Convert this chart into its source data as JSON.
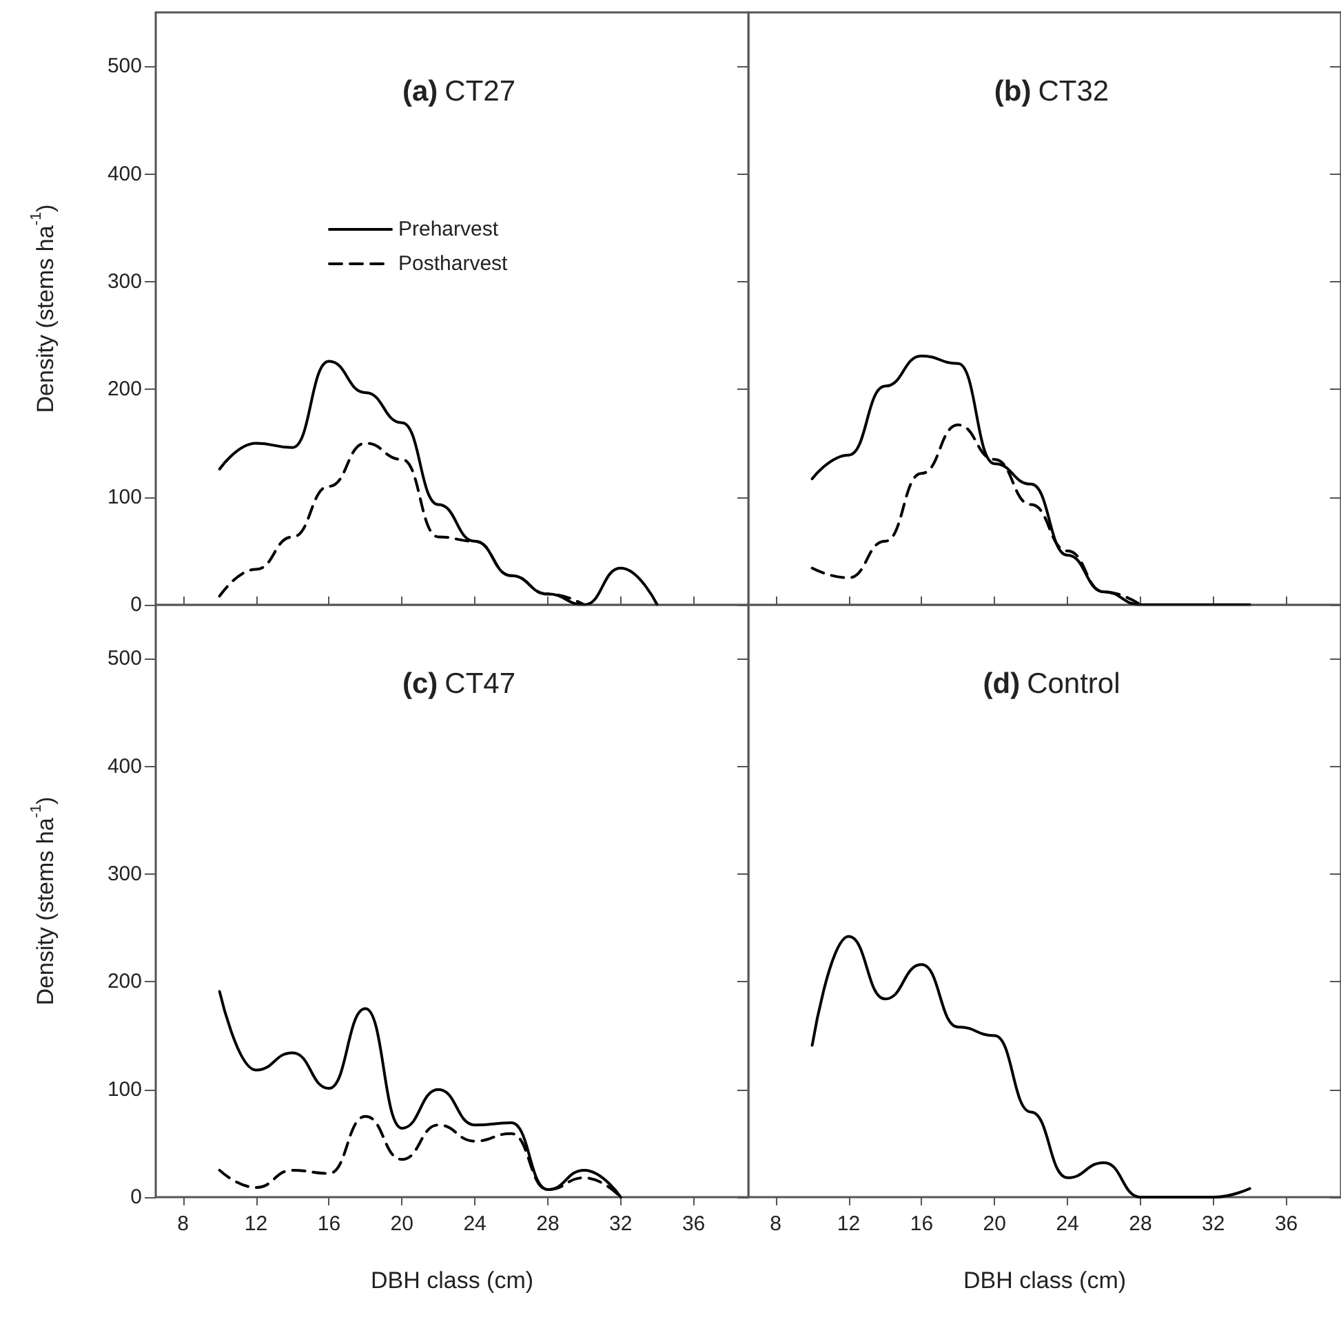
{
  "chart_data": [
    {
      "type": "line",
      "title": "(a) CT27",
      "ylabel": "Density (stems ha$^{-1}$)",
      "x": [
        10,
        12,
        14,
        16,
        18,
        20,
        22,
        24,
        26,
        28,
        30,
        32,
        34
      ],
      "xlim": [
        6.5,
        39
      ],
      "xticks": [
        8,
        12,
        16,
        20,
        24,
        28,
        32,
        36
      ],
      "ylim": [
        0,
        550
      ],
      "yticks": [
        0,
        100,
        200,
        300,
        400,
        500
      ],
      "tick_labels": "y",
      "legend": "top left",
      "grid": false,
      "marker": "none",
      "series": [
        {
          "name": "Preharvest",
          "color": "#000000",
          "line_style": "solid",
          "values": [
            126,
            150,
            146,
            226,
            197,
            169,
            93,
            59,
            27,
            10,
            0,
            34,
            0
          ]
        },
        {
          "name": "Postharvest",
          "color": "#000000",
          "line_style": "dashed",
          "values": [
            8,
            33,
            63,
            110,
            150,
            135,
            63,
            59,
            27,
            10,
            0,
            null,
            null
          ]
        }
      ]
    },
    {
      "type": "line",
      "title": "(b) CT32",
      "x": [
        10,
        12,
        14,
        16,
        18,
        20,
        22,
        24,
        26,
        28,
        30,
        32,
        34
      ],
      "xlim": [
        6.5,
        39
      ],
      "xticks": [
        8,
        12,
        16,
        20,
        24,
        28,
        32,
        36
      ],
      "ylim": [
        0,
        550
      ],
      "yticks": [
        0,
        100,
        200,
        300,
        400,
        500
      ],
      "tick_labels": false,
      "grid": false,
      "marker": "none",
      "series": [
        {
          "color": "#000000",
          "line_style": "solid",
          "values": [
            117,
            139,
            203,
            231,
            224,
            131,
            112,
            46,
            12,
            0,
            0,
            0,
            0
          ]
        },
        {
          "color": "#000000",
          "line_style": "dashed",
          "values": [
            34,
            25,
            59,
            122,
            167,
            135,
            93,
            50,
            12,
            0,
            null,
            null,
            null
          ]
        }
      ]
    },
    {
      "type": "line",
      "title": "(c) CT47",
      "ylabel": "Density (stems ha$^{-1}$)",
      "xlabel": "DBH class (cm)",
      "x": [
        10,
        12,
        14,
        16,
        18,
        20,
        22,
        24,
        26,
        28,
        30,
        32
      ],
      "xlim": [
        6.5,
        39
      ],
      "xticks": [
        8,
        12,
        16,
        20,
        24,
        28,
        32,
        36
      ],
      "ylim": [
        0,
        550
      ],
      "yticks": [
        0,
        100,
        200,
        300,
        400,
        500
      ],
      "grid": false,
      "marker": "none",
      "series": [
        {
          "color": "#000000",
          "line_style": "solid",
          "values": [
            191,
            118,
            134,
            101,
            175,
            64,
            100,
            67,
            69,
            7,
            25,
            0
          ]
        },
        {
          "color": "#000000",
          "line_style": "dashed",
          "values": [
            25,
            9,
            25,
            22,
            75,
            35,
            67,
            52,
            59,
            7,
            18,
            0
          ]
        }
      ]
    },
    {
      "type": "line",
      "title": "(d) Control",
      "xlabel": "DBH class (cm)",
      "x": [
        10,
        12,
        14,
        16,
        18,
        20,
        22,
        24,
        26,
        28,
        30,
        32,
        34
      ],
      "xlim": [
        6.5,
        39
      ],
      "xticks": [
        8,
        12,
        16,
        20,
        24,
        28,
        32,
        36
      ],
      "ylim": [
        0,
        550
      ],
      "yticks": [
        0,
        100,
        200,
        300,
        400,
        500
      ],
      "tick_labels": "x",
      "grid": false,
      "marker": "none",
      "series": [
        {
          "color": "#000000",
          "line_style": "solid",
          "values": [
            141,
            242,
            184,
            216,
            158,
            150,
            79,
            18,
            32,
            0,
            0,
            0,
            8
          ]
        }
      ]
    }
  ]
}
